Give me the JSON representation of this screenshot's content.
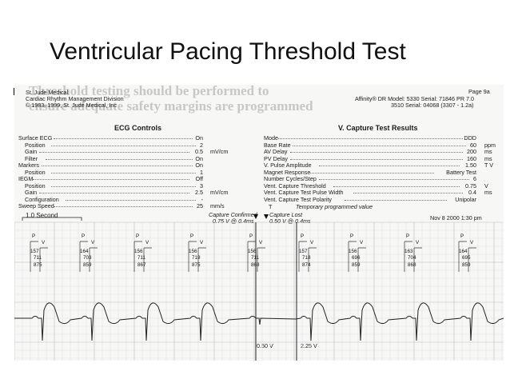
{
  "slide": {
    "title": "Ventricular Pacing Threshold Test"
  },
  "overlay": {
    "line1": "Threshold testing should be performed to",
    "line2": "ensure adequate safety margins are programmed"
  },
  "printout": {
    "company": "St. Jude Medical",
    "division": "Cardiac Rhythm Management Division",
    "copyright": "© 1983–1999, St. Jude Medical, Inc",
    "page": "Page 9a",
    "model_line1": "Affinity® DR Model: 5330 Serial: 71846 PR 7.0",
    "model_line2": "3510 Serial: 04068 (3307 - 1.2a)",
    "ecg_title": "ECG Controls",
    "ecg_rows": [
      {
        "label": "Surface ECG",
        "value": "On",
        "unit": "",
        "indent": false
      },
      {
        "label": "Position",
        "value": "2",
        "unit": "",
        "indent": true
      },
      {
        "label": "Gain",
        "value": "0.5",
        "unit": "mV/cm",
        "indent": true
      },
      {
        "label": "Filter",
        "value": "On",
        "unit": "",
        "indent": true
      },
      {
        "label": "Markers",
        "value": "On",
        "unit": "",
        "indent": false
      },
      {
        "label": "Position",
        "value": "1",
        "unit": "",
        "indent": true
      },
      {
        "label": "IEGM",
        "value": "Off",
        "unit": "",
        "indent": false
      },
      {
        "label": "Position",
        "value": "3",
        "unit": "",
        "indent": true
      },
      {
        "label": "Gain",
        "value": "2.5",
        "unit": "mV/cm",
        "indent": true
      },
      {
        "label": "Configuration",
        "value": "-",
        "unit": "",
        "indent": true
      },
      {
        "label": "Sweep Speed",
        "value": "25",
        "unit": "mm/s",
        "indent": false
      }
    ],
    "capture_title": "V. Capture Test Results",
    "capture_rows": [
      {
        "label": "Mode",
        "value": "DDD",
        "unit": ""
      },
      {
        "label": "Base Rate",
        "value": "60",
        "unit": "ppm"
      },
      {
        "label": "AV Delay",
        "value": "200",
        "unit": "ms"
      },
      {
        "label": "PV Delay",
        "value": "160",
        "unit": "ms"
      },
      {
        "label": "V. Pulse Amplitude",
        "value": "1.50",
        "unit": "T  V"
      },
      {
        "label": "Magnet Response",
        "value": "Battery Test",
        "unit": ""
      },
      {
        "label": "Number Cycles/Step",
        "value": "6",
        "unit": ""
      },
      {
        "label": "Vent. Capture Threshold",
        "value": "0.75",
        "unit": "V"
      },
      {
        "label": "Vent. Capture Test Pulse Width",
        "value": "0.4",
        "unit": "ms"
      },
      {
        "label": "Vent. Capture Test Polarity",
        "value": "Unipolar",
        "unit": ""
      }
    ],
    "temp_note_symbol": "T",
    "temp_note": "Temporary programmed value",
    "scale_label": "1.0 Second",
    "capture_confirmed_label": "Capture Confirmed",
    "capture_confirmed_value": "0.75 V @ 0.4ms",
    "capture_lost_label": "Capture Lost",
    "capture_lost_value": "0.50 V @ 0.4ms",
    "date": "Nov 8 2000  1:30 pm",
    "amp_left": "0.50 V",
    "amp_right": "2.25 V",
    "beats": [
      {
        "p": "P",
        "v": "V",
        "n1": "157",
        "n2": "711",
        "n3": "875"
      },
      {
        "p": "P",
        "v": "V",
        "n1": "164",
        "n2": "703",
        "n3": "859"
      },
      {
        "p": "P",
        "v": "V",
        "n1": "156",
        "n2": "711",
        "n3": "867"
      },
      {
        "p": "P",
        "v": "V",
        "n1": "156",
        "n2": "719",
        "n3": "875"
      },
      {
        "p": "P",
        "v": "V",
        "n1": "156",
        "n2": "711",
        "n3": "868"
      },
      {
        "p": "P",
        "v": "V",
        "n1": "157",
        "n2": "718",
        "n3": "874"
      },
      {
        "p": "P",
        "v": "V",
        "n1": "156",
        "n2": "696",
        "n3": "859"
      },
      {
        "p": "P",
        "v": "V",
        "n1": "163",
        "n2": "704",
        "n3": "868"
      },
      {
        "p": "P",
        "v": "V",
        "n1": "164",
        "n2": "695",
        "n3": "859"
      }
    ]
  }
}
